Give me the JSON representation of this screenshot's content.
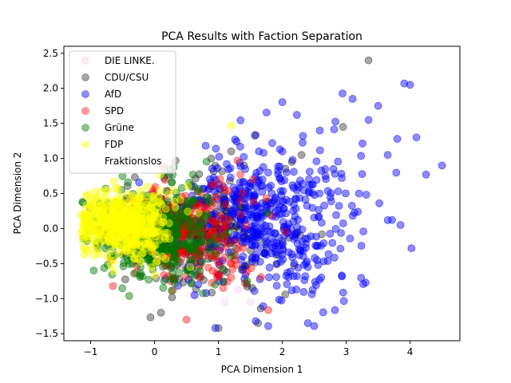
{
  "chart_data": {
    "type": "scatter",
    "title": "PCA Results with Faction Separation",
    "xlabel": "PCA Dimension 1",
    "ylabel": "PCA Dimension 2",
    "xlim": [
      -1.42,
      4.78
    ],
    "ylim": [
      -1.6,
      2.6
    ],
    "xticks": [
      -1,
      0,
      1,
      2,
      3,
      4
    ],
    "yticks": [
      -1.5,
      -1.0,
      -0.5,
      0.0,
      0.5,
      1.0,
      1.5,
      2.0,
      2.5
    ],
    "xtick_labels": [
      "−1",
      "0",
      "1",
      "2",
      "3",
      "4"
    ],
    "ytick_labels": [
      "−1.5",
      "−1.0",
      "−0.5",
      "0.0",
      "0.5",
      "1.0",
      "1.5",
      "2.0",
      "2.5"
    ],
    "legend_position": "top-left",
    "grid": false,
    "series": [
      {
        "name": "DIE LINKE.",
        "color": "#cc00cc",
        "alpha": 0.08,
        "n": 140,
        "center": [
          0.3,
          0.0
        ],
        "spread": [
          0.45,
          0.3
        ],
        "points": [
          [
            1.1,
            -1.05
          ],
          [
            0.6,
            -0.95
          ],
          [
            1.5,
            -1.05
          ]
        ]
      },
      {
        "name": "CDU/CSU",
        "color": "#000000",
        "alpha": 0.35,
        "n": 320,
        "center": [
          0.7,
          0.0
        ],
        "spread": [
          0.55,
          0.35
        ],
        "points": [
          [
            3.35,
            2.4
          ],
          [
            2.95,
            1.45
          ],
          [
            2.3,
            1.05
          ],
          [
            1.2,
            1.1
          ],
          [
            0.1,
            -1.2
          ],
          [
            1.0,
            -1.42
          ],
          [
            1.62,
            -1.35
          ],
          [
            2.28,
            -0.1
          ],
          [
            0.15,
            0.72
          ],
          [
            2.15,
            0.95
          ],
          [
            1.4,
            0.9
          ]
        ]
      },
      {
        "name": "AfD",
        "color": "#0000ff",
        "alpha": 0.45,
        "n": 500,
        "center": [
          1.8,
          0.1
        ],
        "spread": [
          0.7,
          0.5
        ],
        "points": [
          [
            4.5,
            0.9
          ],
          [
            4.25,
            0.77
          ],
          [
            4.0,
            2.05
          ],
          [
            4.1,
            1.3
          ],
          [
            3.8,
            1.28
          ],
          [
            3.5,
            1.75
          ],
          [
            3.1,
            1.85
          ],
          [
            3.85,
            0.05
          ],
          [
            2.4,
            -1.35
          ],
          [
            0.95,
            -1.42
          ],
          [
            3.65,
            1.05
          ],
          [
            3.2,
            0.5
          ],
          [
            2.8,
            0.85
          ],
          [
            3.35,
            1.55
          ],
          [
            2.0,
            1.1
          ]
        ]
      },
      {
        "name": "SPD",
        "color": "#ff0000",
        "alpha": 0.4,
        "n": 300,
        "center": [
          0.5,
          -0.05
        ],
        "spread": [
          0.55,
          0.3
        ],
        "points": [
          [
            0.5,
            -1.3
          ],
          [
            0.25,
            -0.75
          ],
          [
            1.3,
            0.97
          ],
          [
            2.05,
            -0.05
          ],
          [
            -0.65,
            -0.82
          ]
        ]
      },
      {
        "name": "Grüne",
        "color": "#007700",
        "alpha": 0.45,
        "n": 450,
        "center": [
          0.0,
          -0.05
        ],
        "spread": [
          0.45,
          0.3
        ],
        "points": [
          [
            0.6,
            0.77
          ],
          [
            -0.35,
            -0.5
          ],
          [
            1.45,
            -0.75
          ],
          [
            0.95,
            -0.8
          ]
        ]
      },
      {
        "name": "FDP",
        "color": "#ffff00",
        "alpha": 0.45,
        "n": 550,
        "center": [
          -0.45,
          0.05
        ],
        "spread": [
          0.35,
          0.22
        ],
        "points": [
          [
            1.2,
            1.47
          ],
          [
            -1.0,
            0.15
          ],
          [
            0.3,
            0.55
          ]
        ]
      },
      {
        "name": "Fraktionslos",
        "color": "#ffffff",
        "alpha": 0.0,
        "n": 0,
        "center": [
          0.0,
          0.0
        ],
        "spread": [
          0.1,
          0.1
        ],
        "points": []
      }
    ]
  }
}
